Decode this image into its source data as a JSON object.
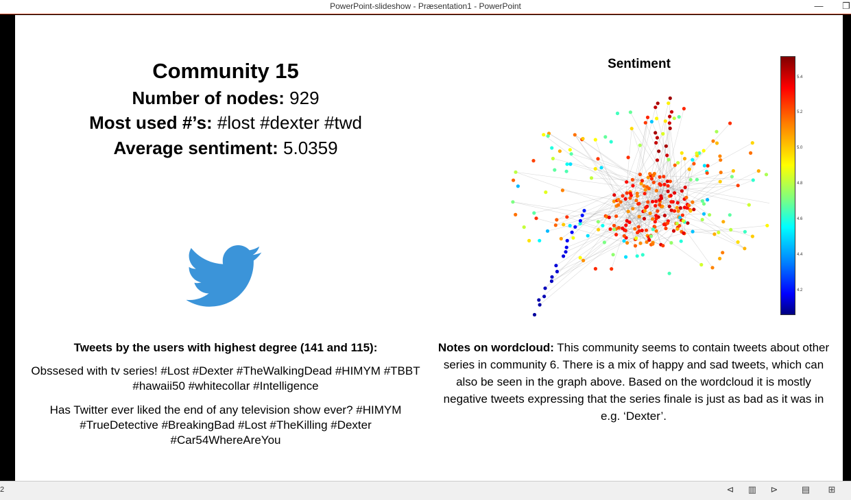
{
  "window": {
    "title": "PowerPoint-slideshow  -  Præsentation1 - PowerPoint",
    "minimize_glyph": "—",
    "restore_glyph": "❐"
  },
  "slide": {
    "title": "Community 15",
    "nodes_label": "Number of nodes:",
    "nodes_value": " 929",
    "hashtags_label": "Most used #’s:",
    "hashtags_value": " #lost #dexter #twd",
    "sentiment_label": "Average sentiment:",
    "sentiment_value": "  5.0359",
    "tweets_heading": "Tweets by the users with highest degree (141 and 115):",
    "tweet_1": "Obssesed with tv series! #Lost #Dexter #TheWalkingDead #HIMYM #TBBT #hawaii50 #whitecollar #Intelligence",
    "tweet_2": "Has Twitter ever liked the end of any television show ever? #HIMYM #TrueDetective #BreakingBad #Lost #TheKilling #Dexter #Car54WhereAreYou",
    "notes_label": "Notes on wordcloud:",
    "notes_text": " This community seems to contain tweets about other series in community 6. There is a mix of happy and sad tweets, which can also be seen in the graph above. Based on the wordcloud it is mostly negative tweets expressing that the series finale is just as bad as it was in e.g. ‘Dexter’.",
    "graph_title": "Sentiment",
    "colorbar_ticks": [
      "5.4",
      "5.2",
      "5.0",
      "4.8",
      "4.6",
      "4.4",
      "4.2"
    ]
  },
  "statusbar": {
    "slide_number": "2"
  },
  "colors": {
    "twitter_blue": "#3b94d9",
    "accent_border": "#c43e1c"
  }
}
